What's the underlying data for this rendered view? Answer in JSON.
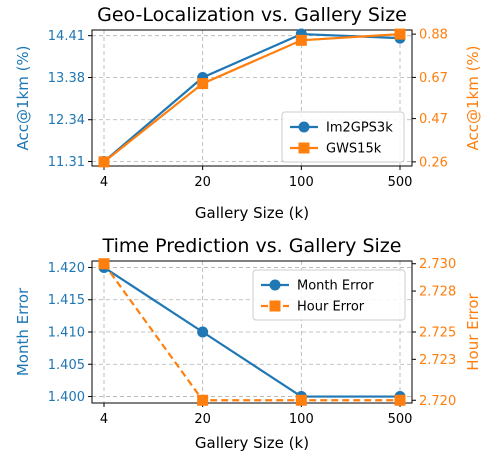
{
  "colors": {
    "blue": "#1f77b4",
    "orange": "#ff7f0e"
  },
  "chart_data": [
    {
      "type": "line",
      "title": "Geo-Localization vs. Gallery Size",
      "xlabel": "Gallery Size (k)",
      "categories": [
        "4",
        "20",
        "100",
        "500"
      ],
      "ylabel_left": "Acc@1km (%)",
      "ylabel_right": "Acc@1km (%)",
      "ylim_left": [
        11.2,
        14.55
      ],
      "ylim_right": [
        0.24,
        0.9
      ],
      "yticks_left": [
        "11.31",
        "12.34",
        "13.38",
        "14.41"
      ],
      "yticks_right": [
        "0.26",
        "0.47",
        "0.67",
        "0.88"
      ],
      "grid": true,
      "legend": "lower-right",
      "series": [
        {
          "name": "Im2GPS3k",
          "axis": "left",
          "color": "blue",
          "marker": "circle",
          "linestyle": "solid",
          "values": [
            11.31,
            13.38,
            14.45,
            14.35
          ]
        },
        {
          "name": "GWS15k",
          "axis": "right",
          "color": "orange",
          "marker": "square",
          "linestyle": "solid",
          "values": [
            0.26,
            0.64,
            0.85,
            0.88
          ]
        }
      ]
    },
    {
      "type": "line",
      "title": "Time Prediction vs. Gallery Size",
      "xlabel": "Gallery Size (k)",
      "categories": [
        "4",
        "20",
        "100",
        "500"
      ],
      "ylabel_left": "Month Error",
      "ylabel_right": "Hour Error",
      "ylim_left": [
        1.399,
        1.421
      ],
      "ylim_right": [
        2.7198,
        2.7302
      ],
      "yticks_left": [
        "1.400",
        "1.405",
        "1.410",
        "1.415",
        "1.420"
      ],
      "yticks_right": [
        "2.720",
        "2.723",
        "2.725",
        "2.728",
        "2.730"
      ],
      "grid": true,
      "legend": "top-right",
      "series": [
        {
          "name": "Month Error",
          "axis": "left",
          "color": "blue",
          "marker": "circle",
          "linestyle": "solid",
          "values": [
            1.42,
            1.41,
            1.4,
            1.4
          ]
        },
        {
          "name": "Hour Error",
          "axis": "right",
          "color": "orange",
          "marker": "square",
          "linestyle": "dashed",
          "values": [
            2.73,
            2.72,
            2.72,
            2.72
          ]
        }
      ]
    }
  ]
}
